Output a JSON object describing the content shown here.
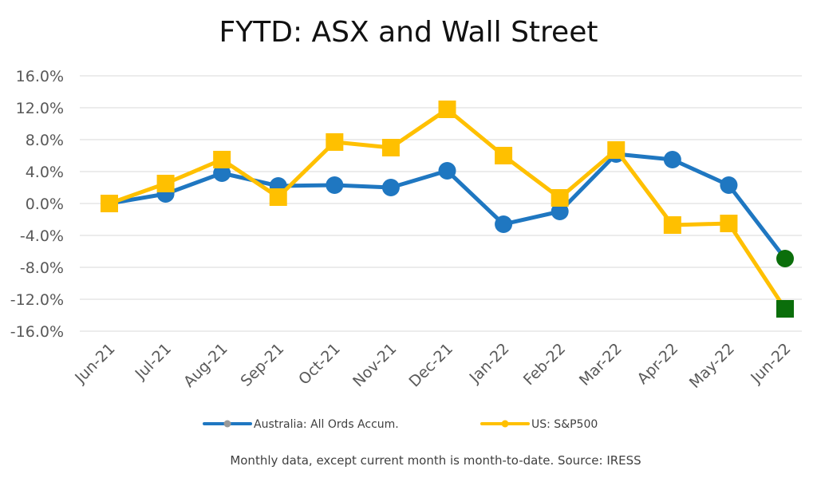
{
  "chart_data": {
    "type": "line",
    "title": "FYTD: ASX and Wall Street",
    "categories": [
      "Jun-21",
      "Jul-21",
      "Aug-21",
      "Sep-21",
      "Oct-21",
      "Nov-21",
      "Dec-21",
      "Jan-22",
      "Feb-22",
      "Mar-22",
      "Apr-22",
      "May-22",
      "Jun-22"
    ],
    "y_ticks": [
      "16.0%",
      "12.0%",
      "8.0%",
      "4.0%",
      "0.0%",
      "-4.0%",
      "-8.0%",
      "-12.0%",
      "-16.0%"
    ],
    "ylim": [
      -16,
      16
    ],
    "grid": true,
    "legend_position": "bottom",
    "series": [
      {
        "name": "Australia: All Ords Accum.",
        "values": [
          0.0,
          1.2,
          3.8,
          2.2,
          2.3,
          2.0,
          4.1,
          -2.6,
          -1.0,
          6.2,
          5.5,
          2.3,
          -6.9
        ],
        "color": "#1F77C1",
        "marker": "circle",
        "last_point_color": "#0B6E0B"
      },
      {
        "name": "US: S&P500",
        "values": [
          0.0,
          2.5,
          5.5,
          0.8,
          7.7,
          7.0,
          11.8,
          6.0,
          0.7,
          6.7,
          -2.7,
          -2.5,
          -13.2
        ],
        "color": "#FFC000",
        "marker": "square",
        "last_point_color": "#0B6E0B"
      }
    ],
    "legend_marker_colors": [
      "#999999",
      "#FFC000"
    ],
    "footnote": "Monthly data, except current month is month-to-date.  Source: IRESS"
  }
}
